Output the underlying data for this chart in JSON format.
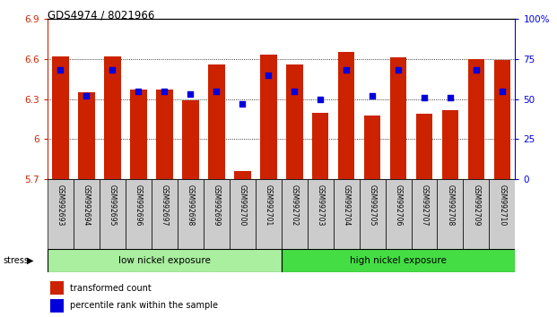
{
  "title": "GDS4974 / 8021966",
  "samples": [
    "GSM992693",
    "GSM992694",
    "GSM992695",
    "GSM992696",
    "GSM992697",
    "GSM992698",
    "GSM992699",
    "GSM992700",
    "GSM992701",
    "GSM992702",
    "GSM992703",
    "GSM992704",
    "GSM992705",
    "GSM992706",
    "GSM992707",
    "GSM992708",
    "GSM992709",
    "GSM992710"
  ],
  "bar_values": [
    6.62,
    6.35,
    6.62,
    6.37,
    6.37,
    6.29,
    6.56,
    5.76,
    6.63,
    6.56,
    6.2,
    6.65,
    6.18,
    6.61,
    6.19,
    6.22,
    6.6,
    6.59
  ],
  "percentile_values": [
    68,
    52,
    68,
    55,
    55,
    53,
    55,
    47,
    65,
    55,
    50,
    68,
    52,
    68,
    51,
    51,
    68,
    55
  ],
  "ymin": 5.7,
  "ymax": 6.9,
  "yright_min": 0,
  "yright_max": 100,
  "yticks_left": [
    5.7,
    6.0,
    6.3,
    6.6,
    6.9
  ],
  "ytick_labels_left": [
    "5.7",
    "6",
    "6.3",
    "6.6",
    "6.9"
  ],
  "yticks_right": [
    0,
    25,
    50,
    75,
    100
  ],
  "ytick_labels_right": [
    "0",
    "25",
    "50",
    "75",
    "100%"
  ],
  "bar_color": "#cc2200",
  "dot_color": "#0000dd",
  "low_nickel_color": "#aaeea0",
  "high_nickel_color": "#44dd44",
  "low_nickel_label": "low nickel exposure",
  "high_nickel_label": "high nickel exposure",
  "low_nickel_count": 9,
  "stress_label": "stress",
  "legend_bar_label": "transformed count",
  "legend_dot_label": "percentile rank within the sample"
}
